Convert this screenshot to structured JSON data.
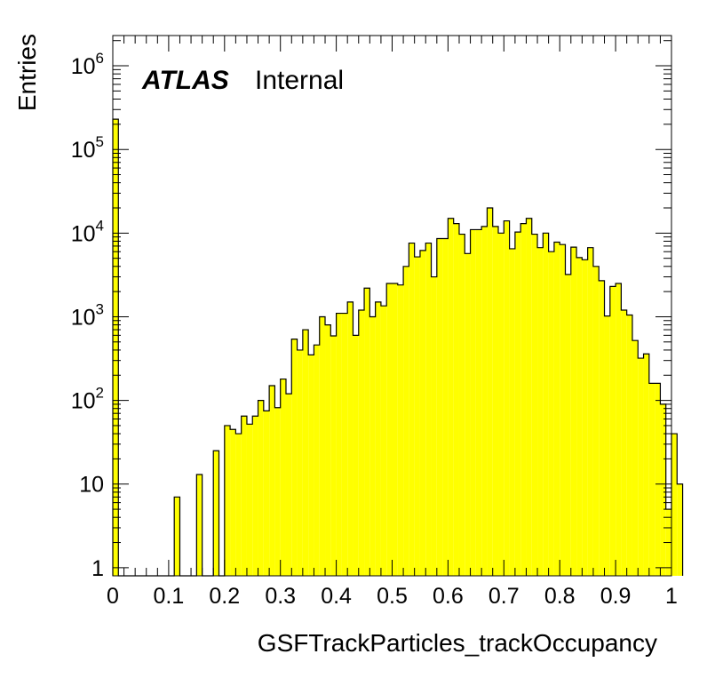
{
  "chart_data": {
    "type": "bar",
    "title": "",
    "xlabel": "GSFTrackParticles_trackOccupancy",
    "ylabel": "Entries",
    "xlim": [
      0,
      1
    ],
    "ylim": [
      0.8,
      2300000
    ],
    "log_y": true,
    "bar_color": "#ffff00",
    "edge_color": "#000000",
    "bin_width": 0.01,
    "annotations": {
      "experiment": "ATLAS",
      "status": "Internal"
    },
    "x_ticks": [
      "0",
      "0.1",
      "0.2",
      "0.3",
      "0.4",
      "0.5",
      "0.6",
      "0.7",
      "0.8",
      "0.9",
      "1"
    ],
    "y_ticks": [
      {
        "value": 1,
        "base": "1",
        "exp": ""
      },
      {
        "value": 10,
        "base": "10",
        "exp": ""
      },
      {
        "value": 100,
        "base": "10",
        "exp": "2"
      },
      {
        "value": 1000,
        "base": "10",
        "exp": "3"
      },
      {
        "value": 10000,
        "base": "10",
        "exp": "4"
      },
      {
        "value": 100000,
        "base": "10",
        "exp": "5"
      },
      {
        "value": 1000000,
        "base": "10",
        "exp": "6"
      }
    ],
    "values": [
      230000,
      0,
      0,
      0,
      0,
      0,
      0,
      0,
      0,
      0,
      0,
      7,
      0,
      0,
      0,
      13,
      0,
      0,
      25,
      0,
      50,
      45,
      40,
      65,
      52,
      65,
      100,
      75,
      150,
      82,
      180,
      120,
      540,
      400,
      700,
      350,
      460,
      1000,
      800,
      590,
      1100,
      1100,
      1500,
      600,
      1200,
      2200,
      1000,
      1500,
      1350,
      2500,
      2500,
      2400,
      4000,
      7600,
      5200,
      6200,
      7600,
      3000,
      8600,
      8600,
      15000,
      13000,
      9700,
      5700,
      11000,
      11000,
      12000,
      20000,
      12000,
      10000,
      14000,
      6500,
      10300,
      13000,
      15000,
      9700,
      6700,
      10000,
      6000,
      7800,
      7300,
      3200,
      6800,
      5100,
      4800,
      6700,
      4000,
      2700,
      1020,
      2300,
      2500,
      1200,
      1050,
      520,
      320,
      360,
      160,
      160,
      90,
      5,
      40,
      10
    ]
  }
}
